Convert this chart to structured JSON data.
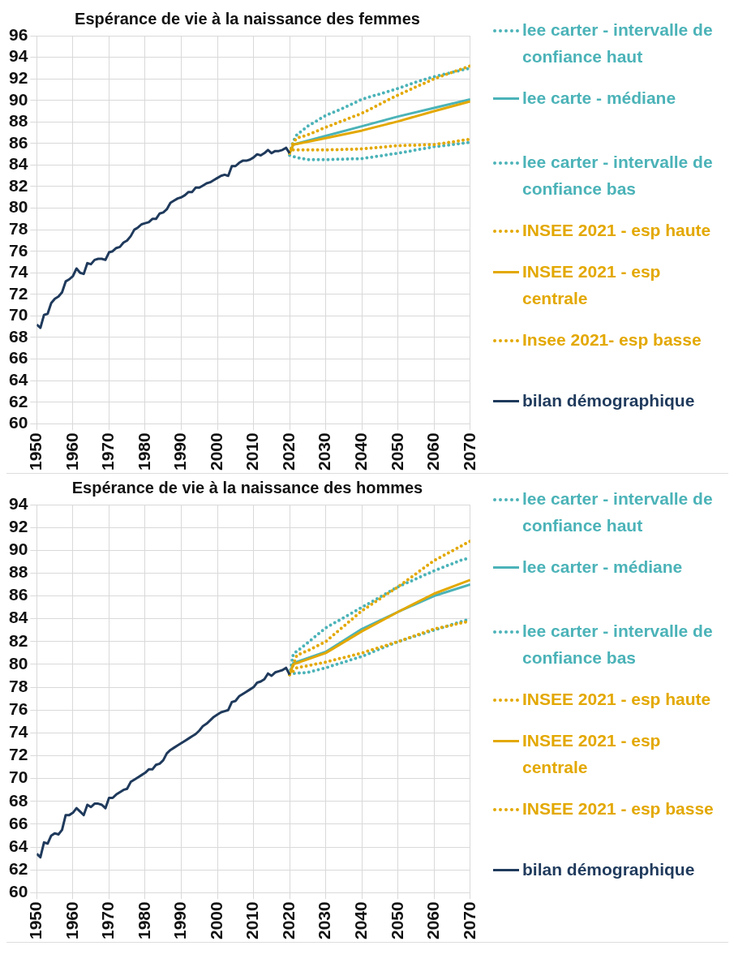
{
  "chart_data": [
    {
      "type": "line",
      "title": "Espérance de vie à la naissance des femmes",
      "xlim": [
        1950,
        2070
      ],
      "xticks": [
        1950,
        1960,
        1970,
        1980,
        1990,
        2000,
        2010,
        2020,
        2030,
        2040,
        2050,
        2060,
        2070
      ],
      "ylim": [
        60,
        96
      ],
      "yticks": [
        60,
        62,
        64,
        66,
        68,
        70,
        72,
        74,
        76,
        78,
        80,
        82,
        84,
        86,
        88,
        90,
        92,
        94,
        96
      ],
      "grid": true,
      "legend": "right",
      "marker": "none",
      "series": [
        {
          "name": "lee carter - intervalle de confiance haut",
          "color": "#4bb3b8",
          "line_style": "dotted",
          "x": [
            2020,
            2021,
            2022,
            2025,
            2030,
            2035,
            2040,
            2045,
            2050,
            2055,
            2060,
            2065,
            2070
          ],
          "values": [
            85.1,
            86.2,
            86.8,
            87.6,
            88.6,
            89.3,
            90.1,
            90.6,
            91.1,
            91.7,
            92.2,
            92.6,
            93.0
          ]
        },
        {
          "name": "lee carte - médiane",
          "color": "#4bb3b8",
          "line_style": "solid",
          "x": [
            2020,
            2021,
            2030,
            2040,
            2050,
            2060,
            2070
          ],
          "values": [
            85.1,
            85.9,
            86.7,
            87.6,
            88.5,
            89.3,
            90.1
          ]
        },
        {
          "name": "lee carter - intervalle de confiance bas",
          "color": "#4bb3b8",
          "line_style": "dotted",
          "x": [
            2020,
            2022,
            2025,
            2030,
            2040,
            2050,
            2060,
            2070
          ],
          "values": [
            84.9,
            84.7,
            84.5,
            84.5,
            84.6,
            85.1,
            85.7,
            86.1
          ]
        },
        {
          "name": "INSEE 2021 - esp haute",
          "color": "#e3a800",
          "line_style": "dotted",
          "x": [
            2020,
            2021,
            2022,
            2025,
            2030,
            2040,
            2050,
            2060,
            2065,
            2070
          ],
          "values": [
            85.1,
            86.1,
            86.5,
            86.8,
            87.5,
            88.8,
            90.5,
            92.0,
            92.6,
            93.2
          ]
        },
        {
          "name": "INSEE 2021 - esp centrale",
          "color": "#e3a800",
          "line_style": "solid",
          "x": [
            2020,
            2021,
            2030,
            2040,
            2050,
            2060,
            2070
          ],
          "values": [
            85.1,
            85.9,
            86.5,
            87.2,
            88.05,
            89.0,
            89.9
          ]
        },
        {
          "name": "Insee 2021- esp basse",
          "color": "#e3a800",
          "line_style": "dotted",
          "x": [
            2020,
            2021,
            2030,
            2040,
            2050,
            2060,
            2070
          ],
          "values": [
            85.1,
            85.4,
            85.4,
            85.5,
            85.8,
            85.9,
            86.4
          ]
        },
        {
          "name": "bilan démographique",
          "color": "#1f3a5c",
          "line_style": "solid",
          "x": [
            1950,
            1951,
            1952,
            1953,
            1954,
            1955,
            1956,
            1957,
            1958,
            1959,
            1960,
            1961,
            1962,
            1963,
            1964,
            1965,
            1966,
            1967,
            1968,
            1969,
            1970,
            1971,
            1972,
            1973,
            1974,
            1975,
            1976,
            1977,
            1978,
            1979,
            1980,
            1981,
            1982,
            1983,
            1984,
            1985,
            1986,
            1987,
            1988,
            1989,
            1990,
            1991,
            1992,
            1993,
            1994,
            1995,
            1996,
            1997,
            1998,
            1999,
            2000,
            2001,
            2002,
            2003,
            2004,
            2005,
            2006,
            2007,
            2008,
            2009,
            2010,
            2011,
            2012,
            2013,
            2014,
            2015,
            2016,
            2017,
            2018,
            2019,
            2020
          ],
          "values": [
            69.2,
            68.9,
            70.1,
            70.2,
            71.2,
            71.6,
            71.8,
            72.2,
            73.2,
            73.4,
            73.7,
            74.4,
            74.0,
            73.9,
            74.9,
            74.8,
            75.2,
            75.3,
            75.3,
            75.2,
            75.9,
            76.0,
            76.3,
            76.4,
            76.8,
            77.0,
            77.4,
            78.0,
            78.2,
            78.5,
            78.6,
            78.7,
            79.0,
            79.0,
            79.5,
            79.6,
            79.9,
            80.5,
            80.7,
            80.9,
            81.0,
            81.2,
            81.5,
            81.5,
            81.9,
            81.9,
            82.1,
            82.3,
            82.4,
            82.6,
            82.8,
            83.0,
            83.1,
            83.0,
            83.9,
            83.9,
            84.2,
            84.4,
            84.4,
            84.5,
            84.7,
            85.0,
            84.9,
            85.1,
            85.4,
            85.1,
            85.3,
            85.3,
            85.4,
            85.6,
            85.1
          ]
        }
      ]
    },
    {
      "type": "line",
      "title": "Espérance de vie à la naissance des hommes",
      "xlim": [
        1950,
        2070
      ],
      "xticks": [
        1950,
        1960,
        1970,
        1980,
        1990,
        2000,
        2010,
        2020,
        2030,
        2040,
        2050,
        2060,
        2070
      ],
      "ylim": [
        60,
        94
      ],
      "yticks": [
        60,
        62,
        64,
        66,
        68,
        70,
        72,
        74,
        76,
        78,
        80,
        82,
        84,
        86,
        88,
        90,
        92,
        94
      ],
      "grid": true,
      "legend": "right",
      "marker": "none",
      "series": [
        {
          "name": "lee carter - intervalle de confiance haut",
          "color": "#4bb3b8",
          "line_style": "dotted",
          "x": [
            2020,
            2021,
            2025,
            2030,
            2040,
            2050,
            2060,
            2068,
            2070
          ],
          "values": [
            79.1,
            80.9,
            81.9,
            83.2,
            85.0,
            86.8,
            88.2,
            89.2,
            89.3
          ]
        },
        {
          "name": "lee carter - médiane",
          "color": "#4bb3b8",
          "line_style": "solid",
          "x": [
            2020,
            2021,
            2030,
            2040,
            2050,
            2060,
            2070
          ],
          "values": [
            79.1,
            80.1,
            81.1,
            83.1,
            84.6,
            86.0,
            87.0
          ]
        },
        {
          "name": "lee carter - intervalle de confiance bas",
          "color": "#4bb3b8",
          "line_style": "dotted",
          "x": [
            2020,
            2021,
            2025,
            2030,
            2040,
            2050,
            2060,
            2070
          ],
          "values": [
            79.1,
            79.2,
            79.3,
            79.7,
            80.7,
            82.0,
            83.0,
            84.0
          ]
        },
        {
          "name": "INSEE 2021 - esp haute",
          "color": "#e3a800",
          "line_style": "dotted",
          "x": [
            2020,
            2022,
            2025,
            2030,
            2040,
            2050,
            2060,
            2070
          ],
          "values": [
            79.1,
            80.8,
            81.2,
            82.0,
            84.7,
            86.8,
            89.1,
            90.8
          ]
        },
        {
          "name": "INSEE 2021 - esp centrale",
          "color": "#e3a800",
          "line_style": "solid",
          "x": [
            2020,
            2021,
            2030,
            2040,
            2050,
            2060,
            2070
          ],
          "values": [
            79.1,
            80.0,
            81.0,
            82.9,
            84.6,
            86.2,
            87.4
          ]
        },
        {
          "name": "INSEE 2021 - esp basse",
          "color": "#e3a800",
          "line_style": "dotted",
          "x": [
            2020,
            2022,
            2030,
            2040,
            2050,
            2060,
            2070
          ],
          "values": [
            79.1,
            79.7,
            80.2,
            81.0,
            82.0,
            83.1,
            83.8
          ]
        },
        {
          "name": "bilan démographique",
          "color": "#1f3a5c",
          "line_style": "solid",
          "x": [
            1950,
            1951,
            1952,
            1953,
            1954,
            1955,
            1956,
            1957,
            1958,
            1959,
            1960,
            1961,
            1962,
            1963,
            1964,
            1965,
            1966,
            1967,
            1968,
            1969,
            1970,
            1971,
            1972,
            1973,
            1974,
            1975,
            1976,
            1977,
            1978,
            1979,
            1980,
            1981,
            1982,
            1983,
            1984,
            1985,
            1986,
            1987,
            1988,
            1989,
            1990,
            1991,
            1992,
            1993,
            1994,
            1995,
            1996,
            1997,
            1998,
            1999,
            2000,
            2001,
            2002,
            2003,
            2004,
            2005,
            2006,
            2007,
            2008,
            2009,
            2010,
            2011,
            2012,
            2013,
            2014,
            2015,
            2016,
            2017,
            2018,
            2019,
            2020
          ],
          "values": [
            63.4,
            63.1,
            64.4,
            64.3,
            65.0,
            65.2,
            65.1,
            65.5,
            66.8,
            66.8,
            67.0,
            67.4,
            67.1,
            66.8,
            67.7,
            67.5,
            67.8,
            67.8,
            67.7,
            67.4,
            68.3,
            68.3,
            68.6,
            68.8,
            69.0,
            69.1,
            69.7,
            69.9,
            70.1,
            70.3,
            70.5,
            70.8,
            70.8,
            71.2,
            71.3,
            71.6,
            72.2,
            72.5,
            72.7,
            72.9,
            73.1,
            73.3,
            73.5,
            73.7,
            73.9,
            74.2,
            74.6,
            74.8,
            75.1,
            75.4,
            75.6,
            75.8,
            75.9,
            76.0,
            76.7,
            76.8,
            77.2,
            77.4,
            77.6,
            77.8,
            78.0,
            78.4,
            78.5,
            78.7,
            79.2,
            79.0,
            79.3,
            79.4,
            79.5,
            79.7,
            79.1
          ]
        }
      ]
    }
  ]
}
